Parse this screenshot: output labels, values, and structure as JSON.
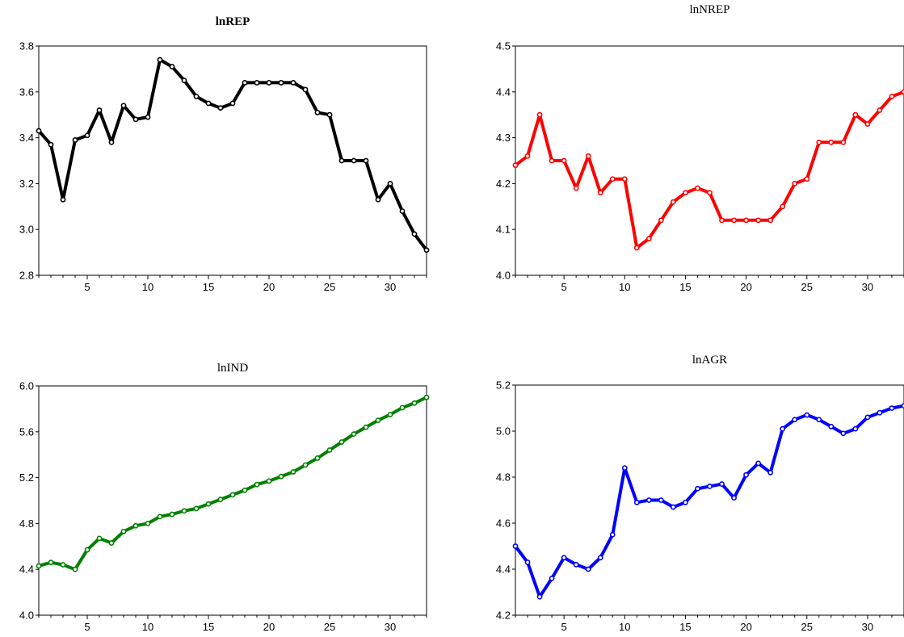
{
  "chart_data": [
    {
      "type": "line",
      "title": "lnREP",
      "title_bold": true,
      "color": "#000000",
      "xlim": [
        1,
        33
      ],
      "ylim": [
        2.8,
        3.8
      ],
      "xticks": [
        5,
        10,
        15,
        20,
        25,
        30
      ],
      "yticks": [
        "2.8",
        "3.0",
        "3.2",
        "3.4",
        "3.6",
        "3.8"
      ],
      "x": [
        1,
        2,
        3,
        4,
        5,
        6,
        7,
        8,
        9,
        10,
        11,
        12,
        13,
        14,
        15,
        16,
        17,
        18,
        19,
        20,
        21,
        22,
        23,
        24,
        25,
        26,
        27,
        28,
        29,
        30,
        31,
        32,
        33
      ],
      "values": [
        3.43,
        3.37,
        3.13,
        3.39,
        3.41,
        3.52,
        3.38,
        3.54,
        3.48,
        3.49,
        3.74,
        3.71,
        3.65,
        3.58,
        3.55,
        3.53,
        3.55,
        3.64,
        3.64,
        3.64,
        3.64,
        3.64,
        3.61,
        3.51,
        3.5,
        3.3,
        3.3,
        3.3,
        3.13,
        3.2,
        3.08,
        2.98,
        2.91
      ]
    },
    {
      "type": "line",
      "title": "lnNREP",
      "title_bold": false,
      "color": "#ff0000",
      "xlim": [
        1,
        33
      ],
      "ylim": [
        4.0,
        4.5
      ],
      "xticks": [
        5,
        10,
        15,
        20,
        25,
        30
      ],
      "yticks": [
        "4.0",
        "4.1",
        "4.2",
        "4.3",
        "4.4",
        "4.5"
      ],
      "x": [
        1,
        2,
        3,
        4,
        5,
        6,
        7,
        8,
        9,
        10,
        11,
        12,
        13,
        14,
        15,
        16,
        17,
        18,
        19,
        20,
        21,
        22,
        23,
        24,
        25,
        26,
        27,
        28,
        29,
        30,
        31,
        32,
        33
      ],
      "values": [
        4.24,
        4.26,
        4.35,
        4.25,
        4.25,
        4.19,
        4.26,
        4.18,
        4.21,
        4.21,
        4.06,
        4.08,
        4.12,
        4.16,
        4.18,
        4.19,
        4.18,
        4.12,
        4.12,
        4.12,
        4.12,
        4.12,
        4.15,
        4.2,
        4.21,
        4.29,
        4.29,
        4.29,
        4.35,
        4.33,
        4.36,
        4.39,
        4.4
      ]
    },
    {
      "type": "line",
      "title": "lnIND",
      "title_bold": false,
      "color": "#008000",
      "xlim": [
        1,
        33
      ],
      "ylim": [
        4.0,
        6.0
      ],
      "xticks": [
        5,
        10,
        15,
        20,
        25,
        30
      ],
      "yticks": [
        "4.0",
        "4.4",
        "4.8",
        "5.2",
        "5.6",
        "6.0"
      ],
      "x": [
        1,
        2,
        3,
        4,
        5,
        6,
        7,
        8,
        9,
        10,
        11,
        12,
        13,
        14,
        15,
        16,
        17,
        18,
        19,
        20,
        21,
        22,
        23,
        24,
        25,
        26,
        27,
        28,
        29,
        30,
        31,
        32,
        33
      ],
      "values": [
        4.43,
        4.46,
        4.44,
        4.4,
        4.57,
        4.67,
        4.63,
        4.73,
        4.78,
        4.8,
        4.86,
        4.88,
        4.91,
        4.93,
        4.97,
        5.01,
        5.05,
        5.09,
        5.14,
        5.17,
        5.21,
        5.25,
        5.31,
        5.37,
        5.44,
        5.51,
        5.58,
        5.64,
        5.7,
        5.75,
        5.81,
        5.85,
        5.9
      ]
    },
    {
      "type": "line",
      "title": "lnAGR",
      "title_bold": false,
      "color": "#0000ff",
      "xlim": [
        1,
        33
      ],
      "ylim": [
        4.2,
        5.2
      ],
      "xticks": [
        5,
        10,
        15,
        20,
        25,
        30
      ],
      "yticks": [
        "4.2",
        "4.4",
        "4.6",
        "4.8",
        "5.0",
        "5.2"
      ],
      "x": [
        1,
        2,
        3,
        4,
        5,
        6,
        7,
        8,
        9,
        10,
        11,
        12,
        13,
        14,
        15,
        16,
        17,
        18,
        19,
        20,
        21,
        22,
        23,
        24,
        25,
        26,
        27,
        28,
        29,
        30,
        31,
        32,
        33
      ],
      "values": [
        4.5,
        4.43,
        4.28,
        4.36,
        4.45,
        4.42,
        4.4,
        4.45,
        4.55,
        4.84,
        4.69,
        4.7,
        4.7,
        4.67,
        4.69,
        4.75,
        4.76,
        4.77,
        4.71,
        4.81,
        4.86,
        4.82,
        5.01,
        5.05,
        5.07,
        5.05,
        5.02,
        4.99,
        5.01,
        5.06,
        5.08,
        5.1,
        5.11
      ]
    }
  ]
}
